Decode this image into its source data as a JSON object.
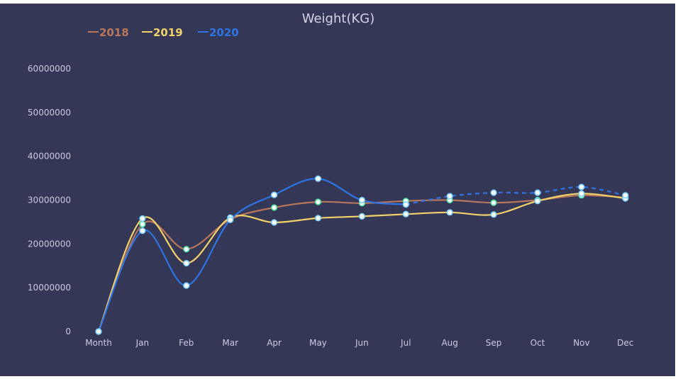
{
  "chart_data": {
    "type": "line",
    "title": "Weight(KG)",
    "categories": [
      "Month",
      "Jan",
      "Feb",
      "Mar",
      "Apr",
      "May",
      "Jun",
      "Jul",
      "Aug",
      "Sep",
      "Oct",
      "Nov",
      "Dec"
    ],
    "ylim": [
      0,
      60000000
    ],
    "yticks": [
      "0",
      "10000000",
      "20000000",
      "30000000",
      "40000000",
      "50000000",
      "60000000"
    ],
    "grid": false,
    "legend_position": "top-left",
    "series": [
      {
        "name": "2018",
        "color": "#b8775c",
        "marker": "#4ee0a0",
        "values": [
          0,
          24500000,
          18800000,
          25600000,
          28300000,
          29600000,
          29300000,
          29800000,
          30000000,
          29400000,
          30000000,
          31100000,
          30600000
        ]
      },
      {
        "name": "2019",
        "color": "#f4d26a",
        "marker": "#7dd0ff",
        "values": [
          0,
          25800000,
          15600000,
          26000000,
          24900000,
          25900000,
          26300000,
          26800000,
          27200000,
          26700000,
          29800000,
          31500000,
          30400000
        ]
      },
      {
        "name": "2020",
        "color": "#2f74e4",
        "marker": "#7dd0ff",
        "values": [
          0,
          23000000,
          10500000,
          25500000,
          31200000,
          34900000,
          30000000,
          29000000,
          30900000,
          31700000,
          31700000,
          33000000,
          31100000
        ],
        "dashed_from_index": 7
      }
    ]
  }
}
